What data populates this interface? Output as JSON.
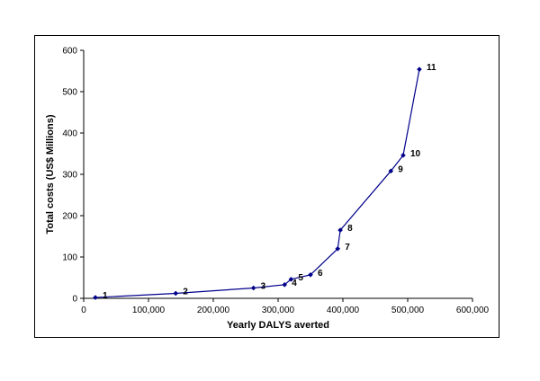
{
  "chart_data": {
    "type": "line",
    "xlabel": "Yearly DALYS averted",
    "ylabel": "Total costs (US$ Millions)",
    "xlim": [
      0,
      600000
    ],
    "ylim": [
      0,
      600
    ],
    "x_ticks": [
      "0",
      "100,000",
      "200,000",
      "300,000",
      "400,000",
      "500,000",
      "600,000"
    ],
    "y_ticks": [
      "0",
      "100",
      "200",
      "300",
      "400",
      "500",
      "600"
    ],
    "grid": false,
    "series": [
      {
        "color": "#00008B",
        "points": [
          {
            "label": "1",
            "x": 18000,
            "y": 2
          },
          {
            "label": "2",
            "x": 142000,
            "y": 12
          },
          {
            "label": "3",
            "x": 262000,
            "y": 25
          },
          {
            "label": "4",
            "x": 310000,
            "y": 33
          },
          {
            "label": "5",
            "x": 320000,
            "y": 46
          },
          {
            "label": "6",
            "x": 350000,
            "y": 57
          },
          {
            "label": "7",
            "x": 392000,
            "y": 120
          },
          {
            "label": "8",
            "x": 396000,
            "y": 165
          },
          {
            "label": "9",
            "x": 474000,
            "y": 308
          },
          {
            "label": "10",
            "x": 493000,
            "y": 346
          },
          {
            "label": "11",
            "x": 518000,
            "y": 554
          }
        ]
      }
    ]
  }
}
